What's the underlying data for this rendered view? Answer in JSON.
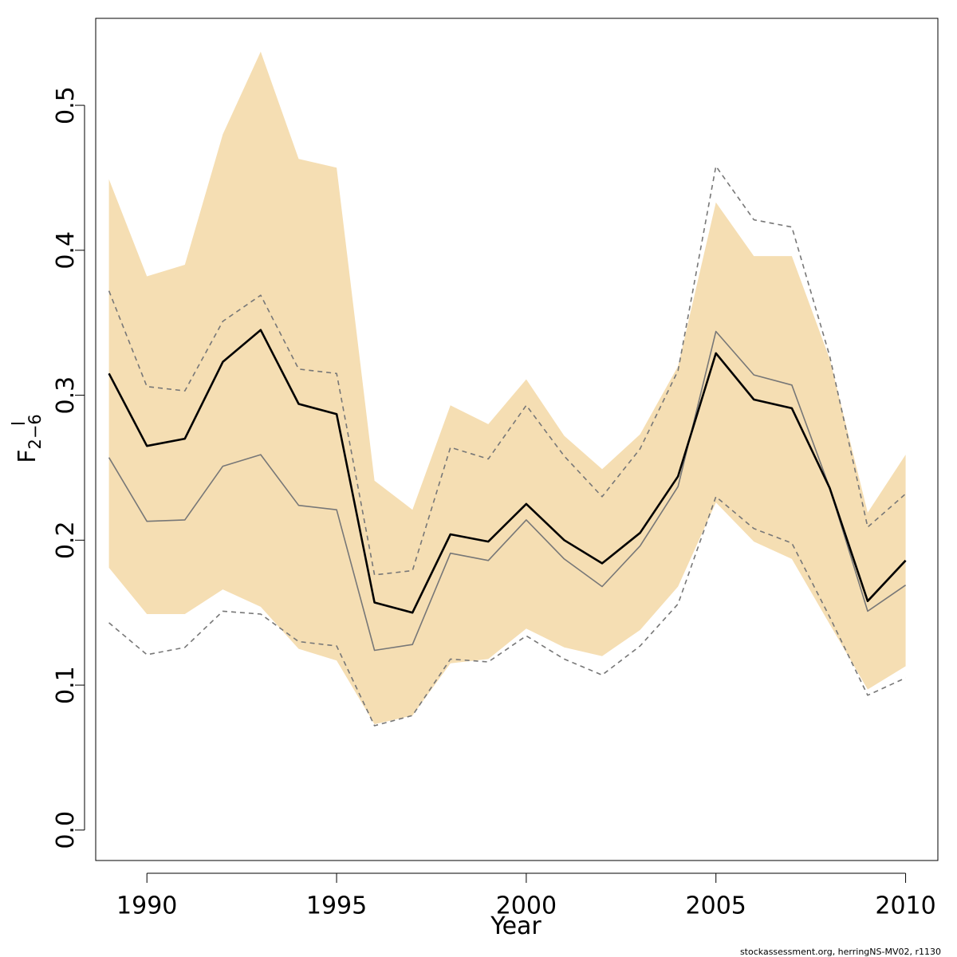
{
  "chart_data": {
    "type": "line",
    "xlabel": "Year",
    "ylabel": "F",
    "ylabel_subscript": "2−6",
    "xlim": [
      1988.65,
      2010.85
    ],
    "ylim": [
      -0.021,
      0.56
    ],
    "x_ticks": [
      1990,
      1995,
      2000,
      2005,
      2010
    ],
    "x_tick_labels": [
      "1990",
      "1995",
      "2000",
      "2005",
      "2010"
    ],
    "y_ticks": [
      0.0,
      0.1,
      0.2,
      0.3,
      0.4,
      0.5
    ],
    "y_tick_labels": [
      "0.0",
      "0.1",
      "0.2",
      "0.3",
      "0.4",
      "0.5"
    ],
    "grid": false,
    "legend": "none",
    "x": [
      1989,
      1990,
      1991,
      1992,
      1993,
      1994,
      1995,
      1996,
      1997,
      1998,
      1999,
      2000,
      2001,
      2002,
      2003,
      2004,
      2005,
      2006,
      2007,
      2008,
      2009,
      2010
    ],
    "band": {
      "color": "#F5DEB3",
      "upper": [
        0.449,
        0.382,
        0.39,
        0.48,
        0.537,
        0.463,
        0.457,
        0.241,
        0.221,
        0.293,
        0.28,
        0.311,
        0.272,
        0.249,
        0.273,
        0.32,
        0.433,
        0.396,
        0.396,
        0.325,
        0.219,
        0.259
      ],
      "lower": [
        0.181,
        0.149,
        0.149,
        0.166,
        0.154,
        0.125,
        0.117,
        0.073,
        0.079,
        0.115,
        0.118,
        0.139,
        0.126,
        0.12,
        0.138,
        0.168,
        0.226,
        0.199,
        0.187,
        0.142,
        0.097,
        0.113
      ]
    },
    "series": [
      {
        "style": "solid-black",
        "color": "#000000",
        "values": [
          0.315,
          0.265,
          0.27,
          0.323,
          0.345,
          0.294,
          0.287,
          0.157,
          0.15,
          0.204,
          0.199,
          0.225,
          0.2,
          0.184,
          0.205,
          0.244,
          0.329,
          0.297,
          0.291,
          0.236,
          0.158,
          0.186
        ]
      },
      {
        "style": "solid-gray",
        "color": "#777777",
        "values": [
          0.257,
          0.213,
          0.214,
          0.251,
          0.259,
          0.224,
          0.221,
          0.124,
          0.128,
          0.191,
          0.186,
          0.214,
          0.187,
          0.168,
          0.196,
          0.237,
          0.344,
          0.314,
          0.307,
          0.236,
          0.151,
          0.169
        ]
      },
      {
        "style": "dashed-gray-upper",
        "color": "#777777",
        "values": [
          0.372,
          0.306,
          0.303,
          0.351,
          0.369,
          0.318,
          0.315,
          0.176,
          0.179,
          0.264,
          0.256,
          0.293,
          0.258,
          0.23,
          0.263,
          0.317,
          0.458,
          0.421,
          0.416,
          0.327,
          0.209,
          0.232
        ]
      },
      {
        "style": "dashed-gray-lower",
        "color": "#777777",
        "values": [
          0.143,
          0.121,
          0.126,
          0.151,
          0.149,
          0.13,
          0.127,
          0.072,
          0.079,
          0.118,
          0.116,
          0.134,
          0.118,
          0.107,
          0.127,
          0.156,
          0.23,
          0.208,
          0.198,
          0.147,
          0.093,
          0.105
        ]
      }
    ]
  },
  "footer": {
    "source": "stockassessment.org, herringNS-MV02, r1130"
  }
}
